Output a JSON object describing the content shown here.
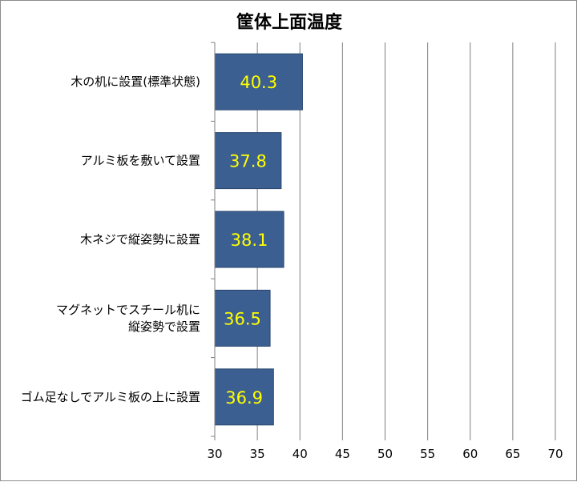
{
  "chart_data": {
    "type": "bar",
    "orientation": "horizontal",
    "title": "筐体上面温度",
    "categories": [
      [
        "木の机に設置(標準状態)"
      ],
      [
        "アルミ板を敷いて設置"
      ],
      [
        "木ネジで縦姿勢に設置"
      ],
      [
        "マグネットでスチール机に",
        "縦姿勢で設置"
      ],
      [
        "ゴム足なしでアルミ板の上に設置"
      ]
    ],
    "values": [
      40.3,
      37.8,
      38.1,
      36.5,
      36.9
    ],
    "value_labels": [
      "40.3",
      "37.8",
      "38.1",
      "36.5",
      "36.9"
    ],
    "xlim": [
      30,
      70
    ],
    "xticks": [
      "30",
      "35",
      "40",
      "45",
      "50",
      "55",
      "60",
      "65",
      "70"
    ],
    "grid": true,
    "legend": "none",
    "colors": {
      "bar_fill": "#3c5f91",
      "bar_stroke": "#2a4670",
      "data_label": "#ffff00",
      "gridline": "#808080"
    }
  }
}
